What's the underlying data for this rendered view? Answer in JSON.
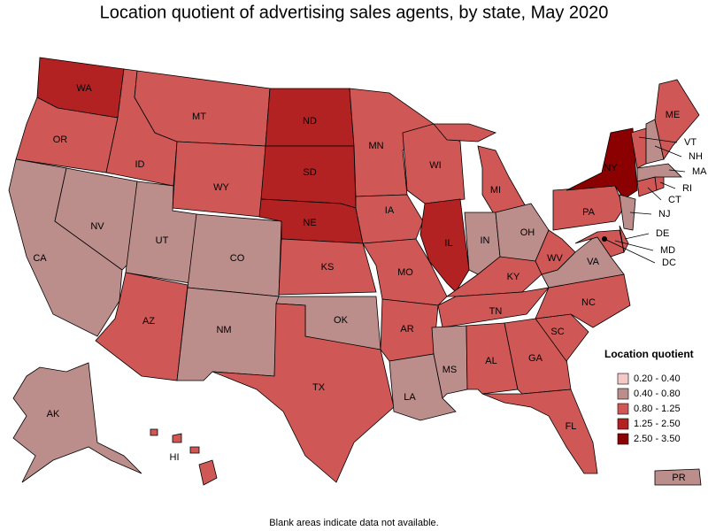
{
  "title": "Location quotient of advertising sales agents, by state, May 2020",
  "legend": {
    "title": "Location quotient",
    "items": [
      {
        "label": "0.20 - 0.40",
        "color": "#f5c8c8"
      },
      {
        "label": "0.40 - 0.80",
        "color": "#bb8d8b"
      },
      {
        "label": "0.80 - 1.25",
        "color": "#cf5856"
      },
      {
        "label": "1.25 - 2.50",
        "color": "#b22222"
      },
      {
        "label": "2.50 - 3.50",
        "color": "#8b0000"
      }
    ]
  },
  "states": [
    {
      "label": "WA",
      "bin": 3
    },
    {
      "label": "OR",
      "bin": 2
    },
    {
      "label": "CA",
      "bin": 1
    },
    {
      "label": "NV",
      "bin": 1
    },
    {
      "label": "ID",
      "bin": 2
    },
    {
      "label": "MT",
      "bin": 2
    },
    {
      "label": "WY",
      "bin": 2
    },
    {
      "label": "UT",
      "bin": 1
    },
    {
      "label": "CO",
      "bin": 1
    },
    {
      "label": "AZ",
      "bin": 2
    },
    {
      "label": "NM",
      "bin": 1
    },
    {
      "label": "ND",
      "bin": 3
    },
    {
      "label": "SD",
      "bin": 3
    },
    {
      "label": "NE",
      "bin": 3
    },
    {
      "label": "KS",
      "bin": 2
    },
    {
      "label": "OK",
      "bin": 1
    },
    {
      "label": "TX",
      "bin": 2
    },
    {
      "label": "MN",
      "bin": 2
    },
    {
      "label": "IA",
      "bin": 2
    },
    {
      "label": "MO",
      "bin": 2
    },
    {
      "label": "AR",
      "bin": 2
    },
    {
      "label": "LA",
      "bin": 1
    },
    {
      "label": "WI",
      "bin": 2
    },
    {
      "label": "IL",
      "bin": 3
    },
    {
      "label": "MI",
      "bin": 2
    },
    {
      "label": "IN",
      "bin": 1
    },
    {
      "label": "OH",
      "bin": 1
    },
    {
      "label": "KY",
      "bin": 2
    },
    {
      "label": "TN",
      "bin": 2
    },
    {
      "label": "MS",
      "bin": 1
    },
    {
      "label": "AL",
      "bin": 2
    },
    {
      "label": "GA",
      "bin": 2
    },
    {
      "label": "FL",
      "bin": 2
    },
    {
      "label": "SC",
      "bin": 2
    },
    {
      "label": "NC",
      "bin": 2
    },
    {
      "label": "VA",
      "bin": 1
    },
    {
      "label": "WV",
      "bin": 2
    },
    {
      "label": "PA",
      "bin": 2
    },
    {
      "label": "NY",
      "bin": 4
    },
    {
      "label": "MD",
      "bin": 2
    },
    {
      "label": "DE",
      "bin": 2
    },
    {
      "label": "NJ",
      "bin": 1
    },
    {
      "label": "CT",
      "bin": 2
    },
    {
      "label": "RI",
      "bin": 2
    },
    {
      "label": "MA",
      "bin": 1
    },
    {
      "label": "VT",
      "bin": 2
    },
    {
      "label": "NH",
      "bin": 1
    },
    {
      "label": "ME",
      "bin": 2
    },
    {
      "label": "AK",
      "bin": 1
    },
    {
      "label": "HI",
      "bin": 2
    },
    {
      "label": "PR",
      "bin": 1
    },
    {
      "label": "DC",
      "bin": null
    }
  ],
  "footnote": "Blank areas indicate data not available."
}
